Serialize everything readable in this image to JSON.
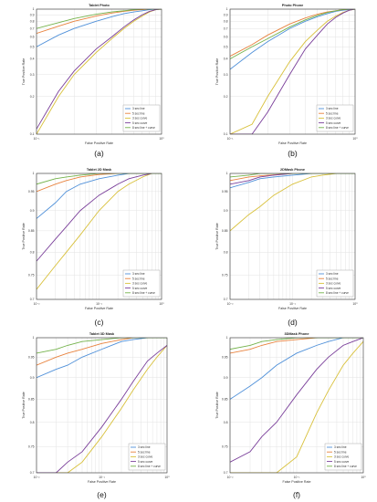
{
  "figure": {
    "panels": [
      {
        "id": "a",
        "caption": "(a)",
        "title": "Tablet Photo"
      },
      {
        "id": "b",
        "caption": "(b)",
        "title": "Photo Phone"
      },
      {
        "id": "c",
        "caption": "(c)",
        "title": "Tablet 2D Mask"
      },
      {
        "id": "d",
        "caption": "(d)",
        "title": "2DMask Phone"
      },
      {
        "id": "e",
        "caption": "(e)",
        "title": "Tablet 3D Mask"
      },
      {
        "id": "f",
        "caption": "(f)",
        "title": "3DMask Phone"
      }
    ]
  },
  "colors": {
    "grid": "#e3e3e3",
    "axis": "#333333",
    "series": [
      "#4f90d9",
      "#e8823d",
      "#d8c03a",
      "#7a3f9a",
      "#74b24b"
    ]
  },
  "chart_data": [
    {
      "type": "line",
      "title": "Tablet Photo",
      "xlabel": "False Positive Rate",
      "ylabel": "True Positive Rate",
      "xscale": "log",
      "yscale": "log",
      "xlim": [
        0.1,
        1
      ],
      "ylim": [
        0.1,
        1
      ],
      "x_ticks": [
        0.1,
        1
      ],
      "x_tick_labels": [
        "10⁻¹",
        "10⁰"
      ],
      "y_ticks": [
        0.1,
        0.2,
        0.3,
        0.4,
        0.5,
        0.6,
        0.7,
        0.8,
        0.9,
        1
      ],
      "y_tick_labels": [
        "0.1",
        "0.2",
        "0.3",
        "0.4",
        "0.5",
        "0.6",
        "0.7",
        "0.8",
        "0.9",
        "1"
      ],
      "grid": true,
      "legend_position": "lower-right",
      "x": [
        0.1,
        0.15,
        0.2,
        0.3,
        0.4,
        0.5,
        0.6,
        0.7,
        0.8,
        0.9,
        1.0
      ],
      "series": [
        {
          "name": "3 sec line",
          "values": [
            0.5,
            0.62,
            0.7,
            0.8,
            0.87,
            0.92,
            0.95,
            0.97,
            0.99,
            1.0,
            1.0
          ]
        },
        {
          "name": "5 sec line",
          "values": [
            0.64,
            0.73,
            0.8,
            0.88,
            0.93,
            0.96,
            0.98,
            0.99,
            1.0,
            1.0,
            1.0
          ]
        },
        {
          "name": "3 sec curve",
          "values": [
            0.1,
            0.2,
            0.3,
            0.45,
            0.58,
            0.7,
            0.8,
            0.88,
            0.95,
            0.99,
            1.0
          ]
        },
        {
          "name": "5 sec curve",
          "values": [
            0.11,
            0.22,
            0.32,
            0.48,
            0.6,
            0.72,
            0.82,
            0.9,
            0.96,
            0.99,
            1.0
          ]
        },
        {
          "name": "8 sec line + curve",
          "values": [
            0.7,
            0.78,
            0.84,
            0.91,
            0.95,
            0.97,
            0.99,
            1.0,
            1.0,
            1.0,
            1.0
          ]
        }
      ]
    },
    {
      "type": "line",
      "title": "Photo Phone",
      "xlabel": "False Positive Rate",
      "ylabel": "True Positive Rate",
      "xscale": "log",
      "yscale": "log",
      "xlim": [
        0.1,
        1
      ],
      "ylim": [
        0.1,
        1
      ],
      "x_ticks": [
        0.1,
        1
      ],
      "x_tick_labels": [
        "10⁻¹",
        "10⁰"
      ],
      "y_ticks": [
        0.1,
        0.2,
        0.3,
        0.4,
        0.5,
        0.6,
        0.7,
        0.8,
        0.9,
        1
      ],
      "y_tick_labels": [
        "0.1",
        "0.2",
        "0.3",
        "0.4",
        "0.5",
        "0.6",
        "0.7",
        "0.8",
        "0.9",
        "1"
      ],
      "grid": true,
      "legend_position": "lower-right",
      "x": [
        0.1,
        0.15,
        0.2,
        0.3,
        0.4,
        0.5,
        0.6,
        0.7,
        0.8,
        0.9,
        1.0
      ],
      "series": [
        {
          "name": "3 sec line",
          "values": [
            0.33,
            0.45,
            0.55,
            0.7,
            0.8,
            0.87,
            0.92,
            0.96,
            0.98,
            0.99,
            1.0
          ]
        },
        {
          "name": "5 sec line",
          "values": [
            0.42,
            0.52,
            0.62,
            0.76,
            0.85,
            0.91,
            0.95,
            0.97,
            0.99,
            1.0,
            1.0
          ]
        },
        {
          "name": "3 sec curve",
          "values": [
            0.1,
            0.12,
            0.2,
            0.38,
            0.55,
            0.68,
            0.8,
            0.88,
            0.94,
            0.98,
            1.0
          ]
        },
        {
          "name": "5 sec curve",
          "values": [
            0.1,
            0.1,
            0.15,
            0.3,
            0.48,
            0.62,
            0.76,
            0.86,
            0.93,
            0.98,
            1.0
          ]
        },
        {
          "name": "8 sec line + curve",
          "values": [
            0.4,
            0.5,
            0.58,
            0.72,
            0.82,
            0.89,
            0.94,
            0.97,
            0.99,
            1.0,
            1.0
          ]
        }
      ]
    },
    {
      "type": "line",
      "title": "Tablet 2D Mask",
      "xlabel": "False Positive Rate",
      "ylabel": "True Positive Rate",
      "xscale": "log",
      "yscale": "log",
      "xlim": [
        0.01,
        1
      ],
      "ylim": [
        0.7,
        1
      ],
      "x_ticks": [
        0.01,
        0.1,
        1
      ],
      "x_tick_labels": [
        "10⁻²",
        "10⁻¹",
        "10⁰"
      ],
      "y_ticks": [
        0.7,
        0.75,
        0.8,
        0.85,
        0.9,
        0.95,
        1
      ],
      "y_tick_labels": [
        "0.7",
        "0.75",
        "0.8",
        "0.85",
        "0.9",
        "0.95",
        "1"
      ],
      "grid": true,
      "legend_position": "lower-right",
      "x": [
        0.01,
        0.02,
        0.03,
        0.05,
        0.1,
        0.2,
        0.3,
        0.5,
        0.7,
        1.0
      ],
      "series": [
        {
          "name": "3 sec line",
          "values": [
            0.88,
            0.92,
            0.95,
            0.97,
            0.985,
            0.995,
            1.0,
            1.0,
            1.0,
            1.0
          ]
        },
        {
          "name": "5 sec line",
          "values": [
            0.95,
            0.97,
            0.98,
            0.99,
            0.997,
            1.0,
            1.0,
            1.0,
            1.0,
            1.0
          ]
        },
        {
          "name": "3 sec curve",
          "values": [
            0.72,
            0.77,
            0.8,
            0.84,
            0.9,
            0.95,
            0.97,
            0.99,
            1.0,
            1.0
          ]
        },
        {
          "name": "5 sec curve",
          "values": [
            0.78,
            0.83,
            0.86,
            0.9,
            0.94,
            0.97,
            0.985,
            0.995,
            1.0,
            1.0
          ]
        },
        {
          "name": "8 sec line + curve",
          "values": [
            0.97,
            0.985,
            0.99,
            0.995,
            1.0,
            1.0,
            1.0,
            1.0,
            1.0,
            1.0
          ]
        }
      ]
    },
    {
      "type": "line",
      "title": "2DMask Phone",
      "xlabel": "False Positive Rate",
      "ylabel": "True Positive Rate",
      "xscale": "log",
      "yscale": "log",
      "xlim": [
        0.01,
        1
      ],
      "ylim": [
        0.7,
        1
      ],
      "x_ticks": [
        0.01,
        0.1,
        1
      ],
      "x_tick_labels": [
        "10⁻²",
        "10⁻¹",
        "10⁰"
      ],
      "y_ticks": [
        0.7,
        0.75,
        0.8,
        0.85,
        0.9,
        0.95,
        1
      ],
      "y_tick_labels": [
        "0.7",
        "0.75",
        "0.8",
        "0.85",
        "0.9",
        "0.95",
        "1"
      ],
      "grid": true,
      "legend_position": "lower-right",
      "x": [
        0.01,
        0.02,
        0.03,
        0.05,
        0.1,
        0.2,
        0.3,
        0.5,
        0.7,
        1.0
      ],
      "series": [
        {
          "name": "3 sec line",
          "values": [
            0.96,
            0.975,
            0.985,
            0.99,
            0.995,
            1.0,
            1.0,
            1.0,
            1.0,
            1.0
          ]
        },
        {
          "name": "5 sec line",
          "values": [
            0.98,
            0.99,
            0.993,
            0.996,
            1.0,
            1.0,
            1.0,
            1.0,
            1.0,
            1.0
          ]
        },
        {
          "name": "3 sec curve",
          "values": [
            0.85,
            0.89,
            0.91,
            0.94,
            0.97,
            0.99,
            0.995,
            1.0,
            1.0,
            1.0
          ]
        },
        {
          "name": "5 sec curve",
          "values": [
            0.97,
            0.98,
            0.99,
            0.995,
            1.0,
            1.0,
            1.0,
            1.0,
            1.0,
            1.0
          ]
        },
        {
          "name": "8 sec line + curve",
          "values": [
            0.99,
            0.995,
            1.0,
            1.0,
            1.0,
            1.0,
            1.0,
            1.0,
            1.0,
            1.0
          ]
        }
      ]
    },
    {
      "type": "line",
      "title": "Tablet 3D Mask",
      "xlabel": "False Positive Rate",
      "ylabel": "True Positive Rate",
      "xscale": "log",
      "yscale": "log",
      "xlim": [
        0.01,
        1
      ],
      "ylim": [
        0.7,
        1
      ],
      "x_ticks": [
        0.01,
        0.1,
        1
      ],
      "x_tick_labels": [
        "10⁻²",
        "10⁻¹",
        "10⁰"
      ],
      "y_ticks": [
        0.7,
        0.75,
        0.8,
        0.85,
        0.9,
        0.95,
        1
      ],
      "y_tick_labels": [
        "0.7",
        "0.75",
        "0.8",
        "0.85",
        "0.9",
        "0.95",
        "1"
      ],
      "grid": true,
      "legend_position": "lower-right",
      "x": [
        0.01,
        0.02,
        0.03,
        0.05,
        0.1,
        0.2,
        0.3,
        0.5,
        0.7,
        1.0
      ],
      "series": [
        {
          "name": "3 sec line",
          "values": [
            0.9,
            0.92,
            0.93,
            0.95,
            0.97,
            0.99,
            0.995,
            1.0,
            1.0,
            1.0
          ]
        },
        {
          "name": "5 sec line",
          "values": [
            0.93,
            0.95,
            0.96,
            0.97,
            0.985,
            0.995,
            1.0,
            1.0,
            1.0,
            1.0
          ]
        },
        {
          "name": "3 sec curve",
          "values": [
            0.7,
            0.7,
            0.7,
            0.72,
            0.77,
            0.83,
            0.87,
            0.92,
            0.95,
            0.98
          ]
        },
        {
          "name": "5 sec curve",
          "values": [
            0.7,
            0.7,
            0.72,
            0.74,
            0.79,
            0.85,
            0.89,
            0.94,
            0.96,
            0.98
          ]
        },
        {
          "name": "8 sec line + curve",
          "values": [
            0.96,
            0.97,
            0.98,
            0.99,
            0.995,
            1.0,
            1.0,
            1.0,
            1.0,
            1.0
          ]
        }
      ]
    },
    {
      "type": "line",
      "title": "3DMask Phone",
      "xlabel": "False Positive Rate",
      "ylabel": "True Positive Rate",
      "xscale": "log",
      "yscale": "log",
      "xlim": [
        0.01,
        1
      ],
      "ylim": [
        0.7,
        1
      ],
      "x_ticks": [
        0.01,
        0.1,
        1
      ],
      "x_tick_labels": [
        "10⁻²",
        "10⁻¹",
        "10⁰"
      ],
      "y_ticks": [
        0.7,
        0.75,
        0.8,
        0.85,
        0.9,
        0.95,
        1
      ],
      "y_tick_labels": [
        "0.7",
        "0.75",
        "0.8",
        "0.85",
        "0.9",
        "0.95",
        "1"
      ],
      "grid": true,
      "legend_position": "lower-right",
      "x": [
        0.01,
        0.02,
        0.03,
        0.05,
        0.1,
        0.2,
        0.3,
        0.5,
        0.7,
        1.0
      ],
      "series": [
        {
          "name": "3 sec line",
          "values": [
            0.85,
            0.88,
            0.9,
            0.93,
            0.96,
            0.98,
            0.99,
            1.0,
            1.0,
            1.0
          ]
        },
        {
          "name": "5 sec line",
          "values": [
            0.96,
            0.97,
            0.98,
            0.99,
            0.995,
            1.0,
            1.0,
            1.0,
            1.0,
            1.0
          ]
        },
        {
          "name": "3 sec curve",
          "values": [
            0.7,
            0.7,
            0.7,
            0.7,
            0.73,
            0.82,
            0.87,
            0.93,
            0.96,
            0.99
          ]
        },
        {
          "name": "5 sec curve",
          "values": [
            0.72,
            0.74,
            0.77,
            0.8,
            0.86,
            0.92,
            0.95,
            0.98,
            0.99,
            1.0
          ]
        },
        {
          "name": "8 sec line + curve",
          "values": [
            0.97,
            0.98,
            0.99,
            0.995,
            1.0,
            1.0,
            1.0,
            1.0,
            1.0,
            1.0
          ]
        }
      ]
    }
  ]
}
